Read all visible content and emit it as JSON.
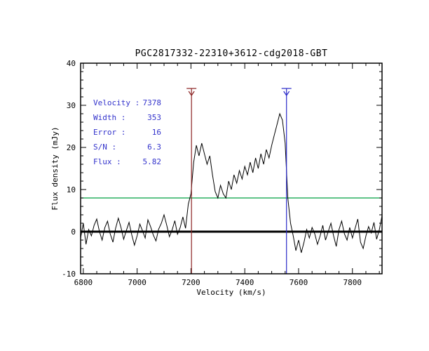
{
  "chart_data": {
    "type": "line",
    "title": "PGC2817332-22310+3612-cdg2018-GBT",
    "xlabel": "Velocity (km/s)",
    "ylabel": "Flux density (mJy)",
    "xlim": [
      6790,
      7910
    ],
    "ylim": [
      -10,
      40
    ],
    "x_ticks": [
      6800,
      7000,
      7200,
      7400,
      7600,
      7800
    ],
    "y_ticks": [
      -10,
      0,
      10,
      20,
      30,
      40
    ],
    "x_minor_step": 50,
    "y_minor_step": 2,
    "grid": false,
    "legend": "none",
    "series_name": "HI spectrum",
    "line_color": "#000000",
    "v_start": 6790,
    "v_step": 10,
    "flux": [
      -1.5,
      2.0,
      -3.0,
      0.5,
      -1.0,
      1.5,
      3.0,
      0.0,
      -2.0,
      1.0,
      2.5,
      -0.5,
      -2.5,
      0.8,
      3.2,
      1.0,
      -1.8,
      0.3,
      2.2,
      -0.7,
      -3.2,
      -1.0,
      1.8,
      0.2,
      -1.5,
      2.8,
      1.2,
      -0.8,
      -2.2,
      0.6,
      2.0,
      4.0,
      1.5,
      -1.2,
      0.4,
      2.6,
      -0.6,
      1.0,
      3.5,
      0.8,
      6.5,
      9.0,
      16.5,
      20.5,
      18.0,
      21.0,
      18.5,
      16.0,
      18.0,
      13.5,
      9.5,
      8.0,
      11.0,
      9.0,
      8.0,
      12.0,
      10.0,
      13.5,
      11.5,
      14.5,
      12.5,
      15.5,
      13.5,
      16.5,
      14.0,
      17.5,
      15.0,
      18.5,
      16.0,
      19.5,
      17.5,
      20.5,
      23.0,
      25.5,
      28.0,
      26.5,
      21.0,
      8.0,
      2.0,
      -1.0,
      -4.5,
      -2.0,
      -5.0,
      -2.5,
      0.5,
      -1.5,
      1.0,
      -0.5,
      -3.0,
      -1.0,
      1.5,
      -2.0,
      0.0,
      2.0,
      -1.0,
      -3.5,
      0.5,
      2.5,
      -0.5,
      -2.0,
      1.0,
      -1.5,
      0.8,
      3.0,
      -2.5,
      -4.0,
      -1.0,
      1.2,
      -0.3,
      2.2,
      -1.8,
      0.5,
      3.8
    ],
    "zero_line": {
      "value": 0,
      "color": "#000000",
      "width": 3
    },
    "threshold_line": {
      "value": 8.0,
      "color": "#00a040",
      "width": 1.2
    },
    "markers": [
      {
        "name": "left-width-marker",
        "velocity": 7202,
        "top": 34,
        "color": "#8b2323"
      },
      {
        "name": "right-width-marker",
        "velocity": 7555,
        "top": 34,
        "color": "#2a2ac9"
      }
    ],
    "annotations": {
      "color": "#3333cc",
      "rows": [
        {
          "label": "Velocity :",
          "value": "7378"
        },
        {
          "label": "Width :",
          "value": "353"
        },
        {
          "label": "Error :",
          "value": "16"
        },
        {
          "label": "S/N :",
          "value": "6.3"
        },
        {
          "label": "Flux :",
          "value": "5.82"
        }
      ]
    }
  }
}
